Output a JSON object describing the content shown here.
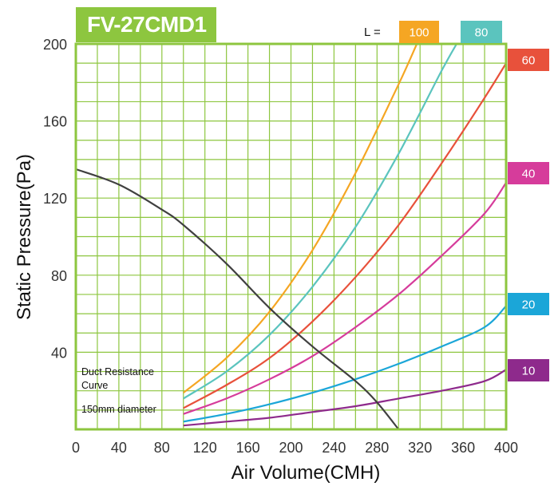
{
  "chart_data": {
    "type": "line",
    "title": "FV-27CMD1",
    "xlabel": "Air Volume(CMH)",
    "ylabel": "Static Pressure(Pa)",
    "xlim": [
      0,
      400
    ],
    "ylim": [
      0,
      200
    ],
    "x_ticks": [
      "0",
      "40",
      "80",
      "120",
      "160",
      "200",
      "240",
      "280",
      "320",
      "360",
      "400"
    ],
    "y_ticks": [
      "40",
      "80",
      "120",
      "160",
      "200"
    ],
    "grid": true,
    "colors": {
      "frame": "#8DC63F",
      "grid": "#8DC63F",
      "fan_curve": "#404040",
      "title_bg": "#8DC63F"
    },
    "fan_curve": {
      "x": [
        0,
        40,
        80,
        100,
        140,
        180,
        220,
        260,
        280,
        300
      ],
      "y": [
        135,
        127,
        114,
        106,
        86,
        63,
        43,
        25,
        14,
        0
      ]
    },
    "legend_prefix": "L =",
    "series": [
      {
        "label": "100",
        "color": "#F5A623",
        "x": [
          100,
          140,
          180,
          220,
          260,
          300,
          317
        ],
        "y": [
          19,
          37,
          61,
          93,
          133,
          179,
          200
        ]
      },
      {
        "label": "80",
        "color": "#5BC4BE",
        "x": [
          100,
          140,
          180,
          220,
          260,
          300,
          340,
          354
        ],
        "y": [
          16,
          30,
          49,
          74,
          105,
          143,
          186,
          200
        ]
      },
      {
        "label": "60",
        "color": "#E8513B",
        "x": [
          100,
          140,
          180,
          220,
          260,
          300,
          340,
          380,
          400
        ],
        "y": [
          11,
          23,
          37,
          56,
          79,
          106,
          138,
          172,
          190
        ]
      },
      {
        "label": "40",
        "color": "#D63C9B",
        "x": [
          100,
          140,
          180,
          220,
          260,
          300,
          340,
          380,
          400
        ],
        "y": [
          8,
          16,
          26,
          38,
          53,
          70,
          90,
          112,
          128
        ]
      },
      {
        "label": "20",
        "color": "#1BA6D8",
        "x": [
          100,
          140,
          180,
          220,
          260,
          300,
          340,
          380,
          400
        ],
        "y": [
          4,
          8,
          13,
          19,
          26,
          34,
          43,
          53,
          64
        ]
      },
      {
        "label": "10",
        "color": "#8E2A8C",
        "x": [
          100,
          140,
          180,
          220,
          260,
          300,
          340,
          380,
          400
        ],
        "y": [
          2,
          4,
          6,
          9,
          12,
          16,
          20,
          25,
          31
        ]
      }
    ],
    "annotation": {
      "line1": "Duct Resistance",
      "line2": "Curve",
      "line3": "150mm diameter"
    }
  }
}
